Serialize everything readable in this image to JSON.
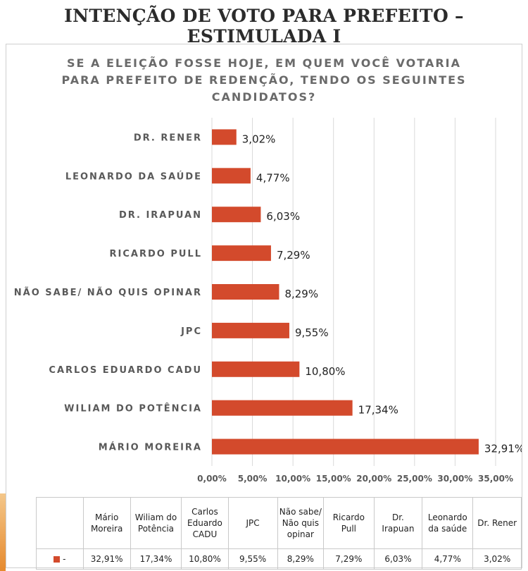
{
  "page": {
    "title": "INTENÇÃO DE VOTO PARA PREFEITO – ESTIMULADA I"
  },
  "colors": {
    "bar": "#d34a2c",
    "accent": "#e68a2e",
    "grid": "#d9d9d9"
  },
  "chart_data": {
    "type": "bar",
    "orientation": "horizontal",
    "title": "SE A ELEIÇÃO FOSSE HOJE, EM QUEM VOCÊ VOTARIA PARA PREFEITO DE REDENÇÃO, TENDO OS SEGUINTES CANDIDATOS?",
    "title_lines": [
      "SE A ELEIÇÃO FOSSE HOJE, EM QUEM VOCÊ VOTARIA",
      "PARA PREFEITO DE REDENÇÃO, TENDO OS SEGUINTES",
      "CANDIDATOS?"
    ],
    "categories": [
      "DR. RENER",
      "LEONARDO DA SAÚDE",
      "DR. IRAPUAN",
      "RICARDO PULL",
      "NÃO SABE/ NÃO QUIS OPINAR",
      "JPC",
      "CARLOS EDUARDO CADU",
      "WILIAM DO POTÊNCIA",
      "MÁRIO MOREIRA"
    ],
    "values": [
      3.02,
      4.77,
      6.03,
      7.29,
      8.29,
      9.55,
      10.8,
      17.34,
      32.91
    ],
    "value_labels": [
      "3,02%",
      "4,77%",
      "6,03%",
      "7,29%",
      "8,29%",
      "9,55%",
      "10,80%",
      "17,34%",
      "32,91%"
    ],
    "xlim": [
      0,
      35
    ],
    "x_ticks": [
      "0,00%",
      "5,00%",
      "10,00%",
      "15,00%",
      "20,00%",
      "25,00%",
      "30,00%",
      "35,00%"
    ],
    "grid": true,
    "legend": "bottom (data table)"
  },
  "data_table": {
    "headers": [
      "Mário Moreira",
      "Wiliam do Potência",
      "Carlos Eduardo CADU",
      "JPC",
      "Não sabe/ Não quis opinar",
      "Ricardo Pull",
      "Dr. Irapuan",
      "Leonardo da saúde",
      "Dr. Rener"
    ],
    "series_name": "-",
    "values": [
      "32,91%",
      "17,34%",
      "10,80%",
      "9,55%",
      "8,29%",
      "7,29%",
      "6,03%",
      "4,77%",
      "3,02%"
    ]
  }
}
